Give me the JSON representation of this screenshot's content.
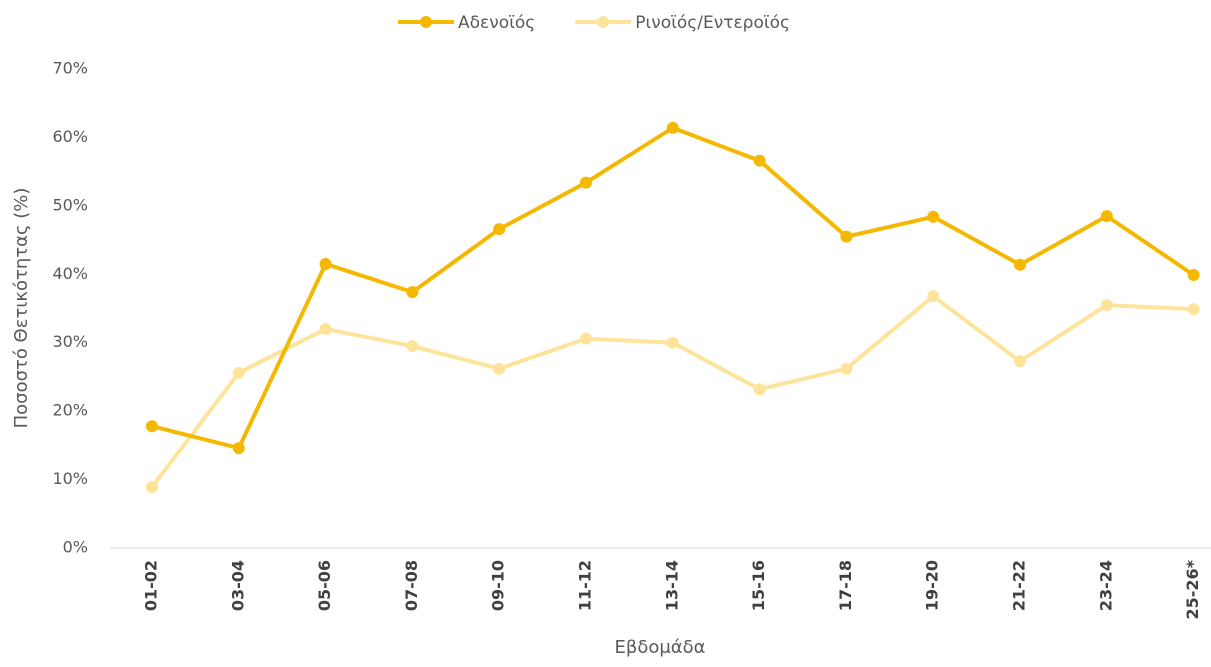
{
  "chart_data": {
    "type": "line",
    "x_label": "Εβδομάδα",
    "y_label": "Ποσοστό Θετικότητας (%)",
    "categories": [
      "01-02",
      "03-04",
      "05-06",
      "07-08",
      "09-10",
      "11-12",
      "13-14",
      "15-16",
      "17-18",
      "19-20",
      "21-22",
      "23-24",
      "25-26*"
    ],
    "series": [
      {
        "name": "Αδενοϊός",
        "color": "#f5b800",
        "values": [
          17.8,
          14.6,
          41.5,
          37.4,
          46.6,
          53.4,
          61.4,
          56.6,
          45.5,
          48.4,
          41.4,
          48.5,
          39.9
        ]
      },
      {
        "name": "Ρινοϊός/Εντεροϊός",
        "color": "#fde49a",
        "values": [
          8.9,
          25.6,
          32.0,
          29.5,
          26.2,
          30.6,
          30.0,
          23.2,
          26.2,
          36.8,
          27.3,
          35.5,
          34.9
        ]
      }
    ],
    "ylim": [
      0,
      70
    ],
    "yticks": [
      {
        "value": 0,
        "label": "0%"
      },
      {
        "value": 10,
        "label": "10%"
      },
      {
        "value": 20,
        "label": "20%"
      },
      {
        "value": 30,
        "label": "30%"
      },
      {
        "value": 40,
        "label": "40%"
      },
      {
        "value": 50,
        "label": "50%"
      },
      {
        "value": 60,
        "label": "60%"
      },
      {
        "value": 70,
        "label": "70%"
      }
    ],
    "legend": "top"
  }
}
